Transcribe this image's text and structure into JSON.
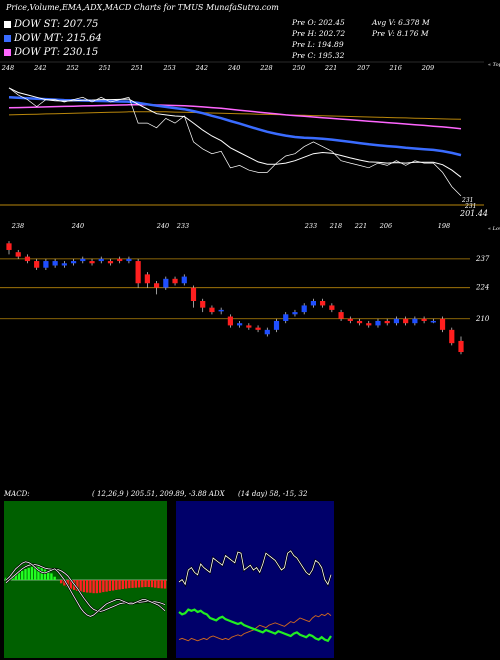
{
  "header": {
    "title": "Price,Volume,EMA,ADX,MACD Charts for TMUS MunafaSutra.com"
  },
  "legend": [
    {
      "label": "DOW ST: 207.75",
      "color": "#ffffff"
    },
    {
      "label": "DOW MT: 215.64",
      "color": "#3a6cff"
    },
    {
      "label": "DOW PT: 230.15",
      "color": "#ff66ff"
    }
  ],
  "stats": {
    "prev_open": "Pre   O: 202.45",
    "prev_high": "Pre   H: 202.72",
    "prev_low": "Pre   L: 194.89",
    "prev_close": "Pre   C: 195.32",
    "avg_volume": "Avg V: 6.378  M",
    "prev_volume": "Pre   V: 8.176  M"
  },
  "top_panel": {
    "top_label": "« Tops",
    "lows_label": "« Lows",
    "right_value": "201.44",
    "right_small": "231",
    "top_ticks": [
      "248",
      "242",
      "252",
      "251",
      "251",
      "253",
      "242",
      "240",
      "228",
      "250",
      "221",
      "207",
      "216",
      "209"
    ],
    "low_ticks": [
      "238",
      "240",
      "240",
      "233",
      "233",
      "218",
      "221",
      "206",
      "198"
    ],
    "lows_left": "231"
  },
  "price_axis": {
    "levels": [
      {
        "label": "237",
        "value": 237
      },
      {
        "label": "224",
        "value": 224
      },
      {
        "label": "210",
        "value": 210
      }
    ]
  },
  "macd": {
    "label": "MACD:",
    "values": "( 12,26,9 ) 205.51,  209.89, -3.88 ADX"
  },
  "adx": {
    "values": "(14  day) 58, -15,  32"
  },
  "colors": {
    "up": "#1f4fff",
    "down": "#ff1f1f",
    "macd_bg": "#006000",
    "adx_bg": "#00006a",
    "ema_short": "#ffffff",
    "ema_mid": "#3a6cff",
    "ema_long": "#ff66ff",
    "ref_line": "#b8860b"
  },
  "chart_data": {
    "type": "candlestick",
    "ylim": [
      186,
      250
    ],
    "candles": [
      [
        244,
        241,
        245,
        239
      ],
      [
        240,
        238,
        241,
        237
      ],
      [
        238,
        236,
        239,
        235
      ],
      [
        236,
        233,
        237,
        232
      ],
      [
        233,
        236,
        237,
        232
      ],
      [
        234,
        236,
        237,
        233
      ],
      [
        234,
        235,
        236,
        233
      ],
      [
        235,
        236,
        237,
        234
      ],
      [
        236,
        237,
        238,
        235
      ],
      [
        236,
        235,
        237,
        234
      ],
      [
        236,
        237,
        238,
        235
      ],
      [
        236,
        235,
        237,
        234
      ],
      [
        237,
        236,
        238,
        235
      ],
      [
        236,
        237,
        238,
        235
      ],
      [
        236,
        226,
        237,
        224
      ],
      [
        230,
        226,
        231,
        224
      ],
      [
        226,
        224,
        227,
        221
      ],
      [
        224,
        228,
        229,
        223
      ],
      [
        228,
        226,
        229,
        225
      ],
      [
        226,
        229,
        230,
        225
      ],
      [
        224,
        218,
        225,
        215
      ],
      [
        218,
        215,
        219,
        213
      ],
      [
        215,
        213,
        216,
        212
      ],
      [
        214,
        214,
        215,
        212
      ],
      [
        211,
        207,
        212,
        206
      ],
      [
        207,
        208,
        209,
        206
      ],
      [
        207,
        206,
        208,
        205
      ],
      [
        206,
        205,
        207,
        204
      ],
      [
        203,
        205,
        206,
        202
      ],
      [
        205,
        209,
        210,
        204
      ],
      [
        209,
        212,
        213,
        208
      ],
      [
        212,
        213,
        214,
        211
      ],
      [
        213,
        216,
        217,
        212
      ],
      [
        216,
        218,
        219,
        215
      ],
      [
        218,
        216,
        219,
        215
      ],
      [
        216,
        214,
        217,
        213
      ],
      [
        213,
        210,
        214,
        209
      ],
      [
        210,
        209,
        211,
        208
      ],
      [
        209,
        208,
        210,
        207
      ],
      [
        208,
        207,
        209,
        206
      ],
      [
        207,
        209,
        210,
        206
      ],
      [
        209,
        208,
        210,
        207
      ],
      [
        208,
        210,
        211,
        207
      ],
      [
        210,
        208,
        211,
        207
      ],
      [
        208,
        210,
        211,
        207
      ],
      [
        210,
        209,
        211,
        208
      ],
      [
        209,
        209,
        210,
        208
      ],
      [
        210,
        205,
        211,
        204
      ],
      [
        205,
        199,
        206,
        198
      ],
      [
        200,
        195,
        202,
        194
      ]
    ],
    "ema_short": [
      241,
      239,
      238,
      237,
      236,
      235.5,
      235.4,
      235.5,
      235.7,
      235.8,
      236,
      236,
      236.1,
      236.2,
      234,
      232,
      230,
      229.5,
      229,
      228.8,
      226,
      223,
      220.5,
      218.5,
      215.5,
      213.5,
      211.5,
      209.5,
      208.5,
      208.5,
      209,
      210,
      211.5,
      213,
      213.5,
      213.2,
      212.2,
      211.2,
      210.3,
      209.5,
      209.3,
      209,
      209.2,
      209,
      209.3,
      209.3,
      209.3,
      208.3,
      206,
      203
    ],
    "ema_mid": [
      237,
      236.8,
      236.6,
      236.4,
      236.2,
      236,
      235.8,
      235.7,
      235.6,
      235.5,
      235.4,
      235.3,
      235.2,
      235.1,
      234.6,
      234,
      233.4,
      232.9,
      232.4,
      231.9,
      231.1,
      230.2,
      229.1,
      228.1,
      226.9,
      225.8,
      224.6,
      223.4,
      222.3,
      221.4,
      220.7,
      220.1,
      219.8,
      219.6,
      219.3,
      219,
      218.5,
      218,
      217.5,
      217,
      216.6,
      216.2,
      215.9,
      215.5,
      215.2,
      214.9,
      214.6,
      214.1,
      213.3,
      212.4
    ],
    "ema_long": [
      232.5,
      232.6,
      232.7,
      232.8,
      232.9,
      233,
      233.1,
      233.2,
      233.3,
      233.4,
      233.5,
      233.6,
      233.7,
      233.8,
      233.8,
      233.8,
      233.7,
      233.6,
      233.5,
      233.4,
      233.2,
      232.9,
      232.6,
      232.3,
      231.9,
      231.5,
      231.1,
      230.7,
      230.3,
      229.9,
      229.5,
      229.2,
      228.9,
      228.6,
      228.3,
      228,
      227.7,
      227.4,
      227.1,
      226.8,
      226.5,
      226.2,
      225.9,
      225.6,
      225.3,
      225,
      224.7,
      224.4,
      224,
      223.6
    ],
    "ema_ref": [
      229.5,
      229.6,
      229.7,
      229.8,
      229.9,
      230,
      230.1,
      230.2,
      230.3,
      230.4,
      230.5,
      230.6,
      230.7,
      230.8,
      230.8,
      230.8,
      230.8,
      230.8,
      230.7,
      230.6,
      230.5,
      230.4,
      230.3,
      230.2,
      230.1,
      230,
      229.9,
      229.8,
      229.7,
      229.6,
      229.5,
      229.4,
      229.3,
      229.2,
      229.1,
      229,
      228.9,
      228.8,
      228.7,
      228.6,
      228.5,
      228.4,
      228.3,
      228.2,
      228.1,
      228,
      227.9,
      227.8,
      227.7,
      227.6
    ],
    "macd_hist": [
      1,
      1.5,
      2,
      2.8,
      3.5,
      4.2,
      5,
      5.5,
      6,
      6.2,
      6,
      5.5,
      4.8,
      4,
      3,
      1.5,
      0,
      -1.5,
      -2.5,
      -3.2,
      -4,
      -4.5,
      -5,
      -5.2,
      -5.5,
      -5.7,
      -5.8,
      -6,
      -6,
      -5.8,
      -5.5,
      -5.3,
      -5,
      -4.8,
      -4.5,
      -4.3,
      -4.1,
      -3.9,
      -3.7,
      -3.6,
      -3.5,
      -3.4,
      -3.3,
      -3.2,
      -3.2,
      -3.3,
      -3.5,
      -3.7,
      -3.8,
      -3.9
    ],
    "macd_line": [
      0,
      2,
      5,
      8,
      10,
      12,
      13,
      12.5,
      11,
      9,
      7,
      5.5,
      5,
      6,
      7,
      8,
      6,
      3,
      0,
      -4,
      -8,
      -12,
      -16,
      -20,
      -23,
      -25,
      -26,
      -25,
      -23,
      -21,
      -19,
      -17,
      -16,
      -15,
      -14,
      -14,
      -15,
      -16,
      -17,
      -17,
      -16,
      -15,
      -14,
      -14,
      -15,
      -16,
      -17,
      -18,
      -20,
      -22
    ],
    "macd_signal": [
      -2,
      0,
      2,
      4,
      6,
      8,
      9.5,
      10.5,
      11,
      11,
      10.5,
      9.5,
      8.5,
      8,
      7.8,
      7.8,
      7.5,
      6.5,
      5,
      3,
      0,
      -3,
      -6,
      -9.5,
      -13,
      -16,
      -19,
      -21,
      -22,
      -22.5,
      -22,
      -21,
      -20,
      -19,
      -18,
      -17,
      -16.5,
      -16.3,
      -16.3,
      -16.3,
      -16.2,
      -16,
      -15.7,
      -15.4,
      -15.3,
      -15.4,
      -15.6,
      -16,
      -16.7,
      -17.6
    ],
    "adx_plus": [
      35,
      33,
      34,
      37,
      36,
      37,
      35,
      36,
      34,
      33,
      30,
      29,
      28,
      30,
      31,
      29,
      28,
      27,
      26,
      25,
      26,
      24,
      23,
      22,
      21,
      20,
      19,
      18,
      20,
      19,
      18,
      17,
      19,
      18,
      17,
      16,
      15,
      17,
      18,
      16,
      15,
      14,
      16,
      15,
      13,
      12,
      14,
      12,
      11,
      15
    ],
    "adx_minus": [
      12,
      13,
      12,
      11,
      13,
      12,
      11,
      12,
      13,
      12,
      14,
      15,
      14,
      13,
      12,
      13,
      12,
      14,
      15,
      16,
      15,
      17,
      18,
      19,
      20,
      22,
      24,
      23,
      22,
      24,
      25,
      26,
      25,
      24,
      23,
      25,
      27,
      26,
      28,
      30,
      29,
      28,
      27,
      30,
      32,
      31,
      33,
      32,
      34,
      32
    ],
    "adx_line": [
      60,
      62,
      58,
      70,
      72,
      68,
      66,
      75,
      72,
      70,
      68,
      80,
      78,
      76,
      74,
      82,
      80,
      78,
      76,
      85,
      84,
      70,
      72,
      74,
      70,
      72,
      68,
      75,
      84,
      82,
      80,
      78,
      74,
      70,
      72,
      84,
      86,
      82,
      80,
      76,
      72,
      68,
      66,
      70,
      78,
      76,
      72,
      62,
      58,
      66
    ]
  }
}
